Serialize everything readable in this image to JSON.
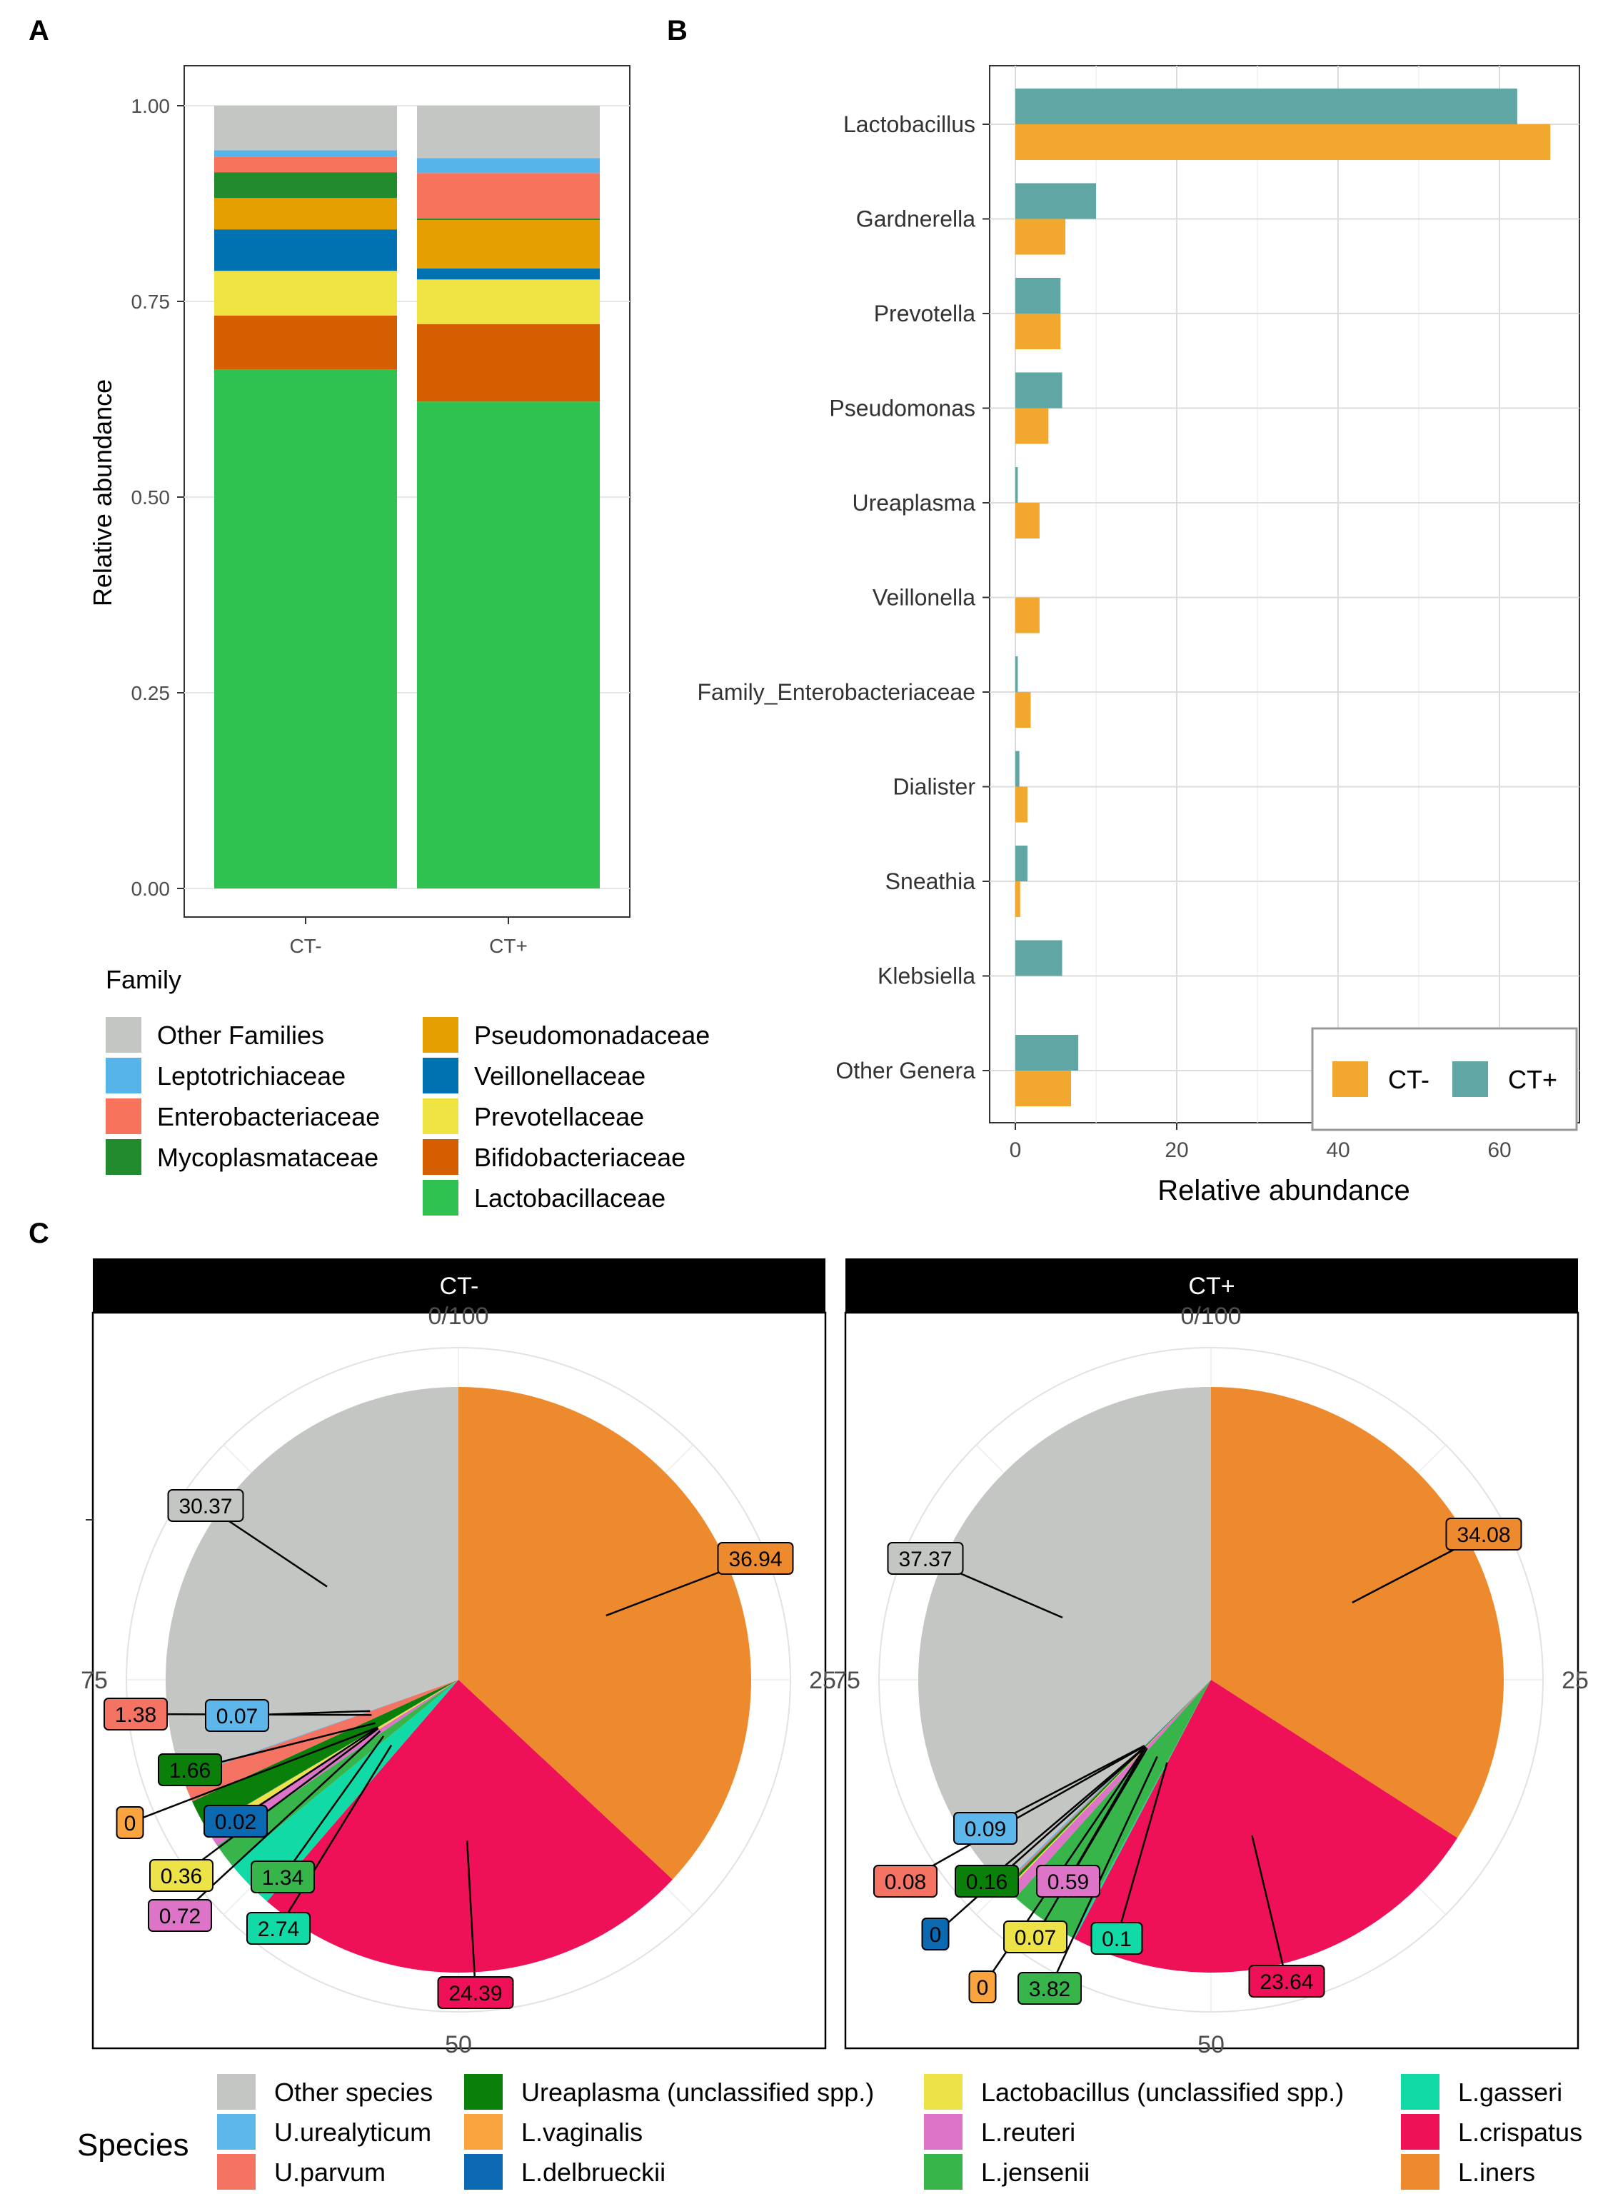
{
  "panels": {
    "a": {
      "letter": "A",
      "chart_data": {
        "type": "bar",
        "stacked": true,
        "categories": [
          "CT-",
          "CT+"
        ],
        "ylabel": "Relative abundance",
        "xlabel": "",
        "ylim": [
          0,
          1
        ],
        "yticks": [
          "0.00",
          "0.25",
          "0.50",
          "0.75",
          "1.00"
        ],
        "legend_title": "Family",
        "series": [
          {
            "name": "Lactobacillaceae",
            "color": "#2FC251",
            "values": [
              0.663,
              0.622
            ]
          },
          {
            "name": "Bifidobacteriaceae",
            "color": "#D55E00",
            "values": [
              0.069,
              0.099
            ]
          },
          {
            "name": "Prevotellaceae",
            "color": "#F0E442",
            "values": [
              0.057,
              0.057
            ]
          },
          {
            "name": "Veillonellaceae",
            "color": "#0072B2",
            "values": [
              0.053,
              0.014
            ]
          },
          {
            "name": "Pseudomonadaceae",
            "color": "#E69F00",
            "values": [
              0.04,
              0.062
            ]
          },
          {
            "name": "Mycoplasmataceae",
            "color": "#228B2E",
            "values": [
              0.033,
              0.002
            ]
          },
          {
            "name": "Enterobacteriaceae",
            "color": "#F8735B",
            "values": [
              0.02,
              0.058
            ]
          },
          {
            "name": "Leptotrichiaceae",
            "color": "#56B4E9",
            "values": [
              0.008,
              0.019
            ]
          },
          {
            "name": "Other Families",
            "color": "#C3C6C3",
            "values": [
              0.057,
              0.067
            ]
          }
        ]
      }
    },
    "b": {
      "letter": "B",
      "chart_data": {
        "type": "bar",
        "orientation": "horizontal",
        "categories": [
          "Lactobacillus",
          "Gardnerella",
          "Prevotella",
          "Pseudomonas",
          "Ureaplasma",
          "Veillonella",
          "Family_Enterobacteriaceae",
          "Dialister",
          "Sneathia",
          "Klebsiella",
          "Other Genera"
        ],
        "xlabel": "Relative abundance",
        "ylabel": "",
        "xlim": [
          0,
          70
        ],
        "xticks": [
          "0",
          "20",
          "40",
          "60"
        ],
        "legend_position": "bottom-right",
        "series": [
          {
            "name": "CT-",
            "color": "#F2A72F",
            "values": [
              66.3,
              6.2,
              5.6,
              4.1,
              3.0,
              3.0,
              1.9,
              1.5,
              0.6,
              0.0,
              6.9
            ]
          },
          {
            "name": "CT+",
            "color": "#5FA6A5",
            "values": [
              62.2,
              10.0,
              5.6,
              5.8,
              0.3,
              0.0,
              0.3,
              0.5,
              1.5,
              5.8,
              7.8
            ]
          }
        ]
      }
    },
    "c": {
      "letter": "C",
      "legend_title": "Species",
      "polar_ticks": [
        "0/100",
        "25",
        "50",
        "75"
      ],
      "chart_data": [
        {
          "type": "pie",
          "facet": "CT-",
          "slices": [
            {
              "name": "L.iners",
              "value": 36.94,
              "label": "36.94",
              "color": "#EE8A2E"
            },
            {
              "name": "L.crispatus",
              "value": 24.39,
              "label": "24.39",
              "color": "#EE1157"
            },
            {
              "name": "L.gasseri",
              "value": 2.74,
              "label": "2.74",
              "color": "#12DAA7"
            },
            {
              "name": "L.jensenii",
              "value": 1.34,
              "label": "1.34",
              "color": "#37B54A"
            },
            {
              "name": "L.reuteri",
              "value": 0.72,
              "label": "0.72",
              "color": "#DD74C7"
            },
            {
              "name": "Lactobacillus (unclassified spp.)",
              "value": 0.36,
              "label": "0.36",
              "color": "#EDE247"
            },
            {
              "name": "L.delbrueckii",
              "value": 0.02,
              "label": "0.02",
              "color": "#0A69B0"
            },
            {
              "name": "L.vaginalis",
              "value": 0.0,
              "label": "0",
              "color": "#F9A43F"
            },
            {
              "name": "Ureaplasma (unclassified spp.)",
              "value": 1.66,
              "label": "1.66",
              "color": "#0A800A"
            },
            {
              "name": "U.parvum",
              "value": 1.38,
              "label": "1.38",
              "color": "#F57362"
            },
            {
              "name": "U.urealyticum",
              "value": 0.07,
              "label": "0.07",
              "color": "#5DB7EB"
            },
            {
              "name": "Other species",
              "value": 30.37,
              "label": "30.37",
              "color": "#C3C6C3"
            }
          ]
        },
        {
          "type": "pie",
          "facet": "CT+",
          "slices": [
            {
              "name": "L.iners",
              "value": 34.08,
              "label": "34.08",
              "color": "#EE8A2E"
            },
            {
              "name": "L.crispatus",
              "value": 23.64,
              "label": "23.64",
              "color": "#EE1157"
            },
            {
              "name": "L.gasseri",
              "value": 0.1,
              "label": "0.1",
              "color": "#12DAA7"
            },
            {
              "name": "L.jensenii",
              "value": 3.82,
              "label": "3.82",
              "color": "#37B54A"
            },
            {
              "name": "L.reuteri",
              "value": 0.59,
              "label": "0.59",
              "color": "#DD74C7"
            },
            {
              "name": "Lactobacillus (unclassified spp.)",
              "value": 0.07,
              "label": "0.07",
              "color": "#EDE247"
            },
            {
              "name": "L.delbrueckii",
              "value": 0.0,
              "label": "0",
              "color": "#0A69B0"
            },
            {
              "name": "L.vaginalis",
              "value": 0.0,
              "label": "0",
              "color": "#F9A43F"
            },
            {
              "name": "Ureaplasma (unclassified spp.)",
              "value": 0.16,
              "label": "0.16",
              "color": "#0A800A"
            },
            {
              "name": "U.parvum",
              "value": 0.08,
              "label": "0.08",
              "color": "#F57362"
            },
            {
              "name": "U.urealyticum",
              "value": 0.09,
              "label": "0.09",
              "color": "#5DB7EB"
            },
            {
              "name": "Other species",
              "value": 37.37,
              "label": "37.37",
              "color": "#C3C6C3"
            }
          ]
        }
      ],
      "legend_order": [
        "Other species",
        "U.urealyticum",
        "U.parvum",
        "Ureaplasma (unclassified spp.)",
        "L.vaginalis",
        "L.delbrueckii",
        "Lactobacillus (unclassified spp.)",
        "L.reuteri",
        "L.jensenii",
        "L.gasseri",
        "L.crispatus",
        "L.iners"
      ]
    }
  }
}
